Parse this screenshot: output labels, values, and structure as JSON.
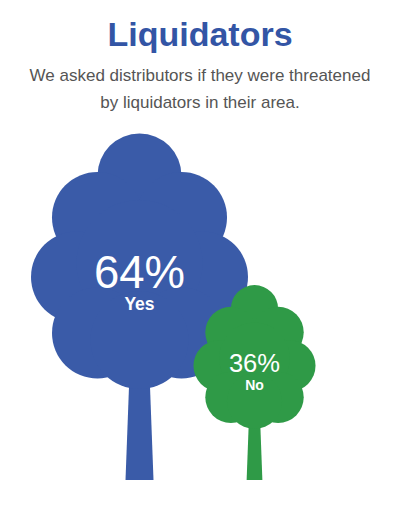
{
  "chart_data": {
    "type": "bar",
    "title": "Liquidators",
    "subtitle": "We asked distributors if they were threatened by liquidators in their area.",
    "categories": [
      "Yes",
      "No"
    ],
    "values": [
      64,
      36
    ],
    "value_labels": [
      "64%",
      "36%"
    ],
    "colors": [
      "#3a5ba8",
      "#2f9a47"
    ],
    "ylim": [
      0,
      64
    ],
    "data_labels": true,
    "tick_labels": false
  }
}
